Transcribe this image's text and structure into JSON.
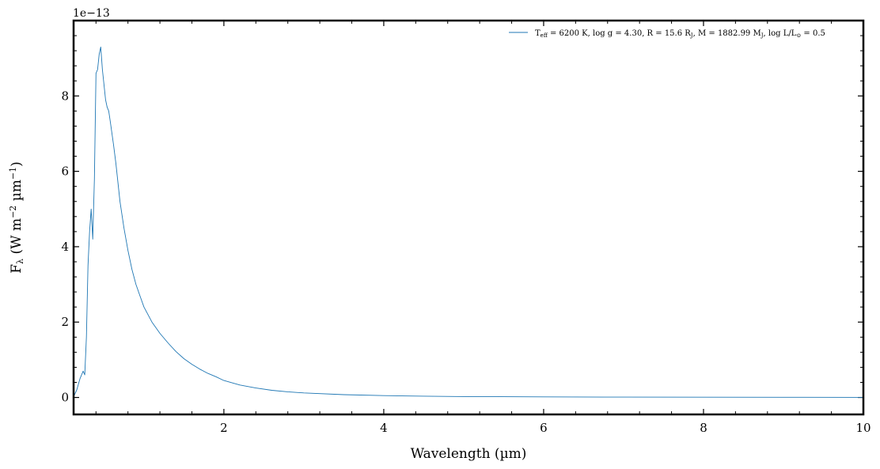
{
  "chart_data": {
    "type": "line",
    "title": "",
    "xlabel": "Wavelength (µm)",
    "ylabel": "F_λ (W m⁻² µm⁻¹)",
    "ylabel_parts": {
      "main": "F",
      "sub": "λ",
      "mid": " (W m",
      "sup1": "−2",
      "mid2": " µm",
      "sup2": "−1",
      "end": ")"
    },
    "y_offset_text": "1e−13",
    "y_scale": 1e-13,
    "xlim": [
      0.12,
      10
    ],
    "ylim": [
      -0.45,
      10.0
    ],
    "x_ticks": [
      2,
      4,
      6,
      8,
      10
    ],
    "x_tick_labels": [
      "2",
      "4",
      "6",
      "8",
      "10"
    ],
    "y_ticks": [
      0,
      2,
      4,
      6,
      8
    ],
    "y_tick_labels": [
      "0",
      "2",
      "4",
      "6",
      "8"
    ],
    "grid": false,
    "legend_position": "top-right",
    "series": [
      {
        "name": "T_eff = 6200 K, log g = 4.30, R = 15.6 R_J, M = 1882.99 M_J, log L/L⊙ = 0.5",
        "legend_parts": {
          "t": "T",
          "t_sub": "eff",
          "a": " = 6200 K, log g = 4.30, R = 15.6 R",
          "r_sub": "J",
          "b": ", M = 1882.99 M",
          "m_sub": "J",
          "c": ", log L/L",
          "l_sub": "⊙",
          "d": " = 0.5"
        },
        "color": "#1f77b4",
        "x": [
          0.12,
          0.16,
          0.2,
          0.24,
          0.26,
          0.28,
          0.3,
          0.32,
          0.34,
          0.36,
          0.38,
          0.4,
          0.42,
          0.44,
          0.46,
          0.48,
          0.5,
          0.52,
          0.54,
          0.56,
          0.58,
          0.6,
          0.62,
          0.65,
          0.7,
          0.75,
          0.8,
          0.85,
          0.9,
          0.95,
          1.0,
          1.1,
          1.2,
          1.3,
          1.4,
          1.5,
          1.6,
          1.7,
          1.8,
          1.9,
          2.0,
          2.2,
          2.4,
          2.6,
          2.8,
          3.0,
          3.5,
          4.0,
          4.5,
          5.0,
          6.0,
          7.0,
          8.0,
          9.0,
          10.0
        ],
        "y": [
          0.02,
          0.2,
          0.5,
          0.7,
          0.6,
          1.6,
          3.5,
          4.4,
          5.0,
          4.2,
          5.8,
          8.6,
          8.7,
          9.1,
          9.3,
          8.7,
          8.3,
          7.9,
          7.7,
          7.6,
          7.3,
          7.0,
          6.7,
          6.2,
          5.2,
          4.5,
          3.9,
          3.4,
          3.0,
          2.7,
          2.4,
          2.0,
          1.7,
          1.45,
          1.22,
          1.03,
          0.88,
          0.75,
          0.64,
          0.55,
          0.45,
          0.33,
          0.25,
          0.19,
          0.15,
          0.12,
          0.075,
          0.05,
          0.035,
          0.025,
          0.015,
          0.01,
          0.007,
          0.005,
          0.004
        ]
      }
    ]
  }
}
